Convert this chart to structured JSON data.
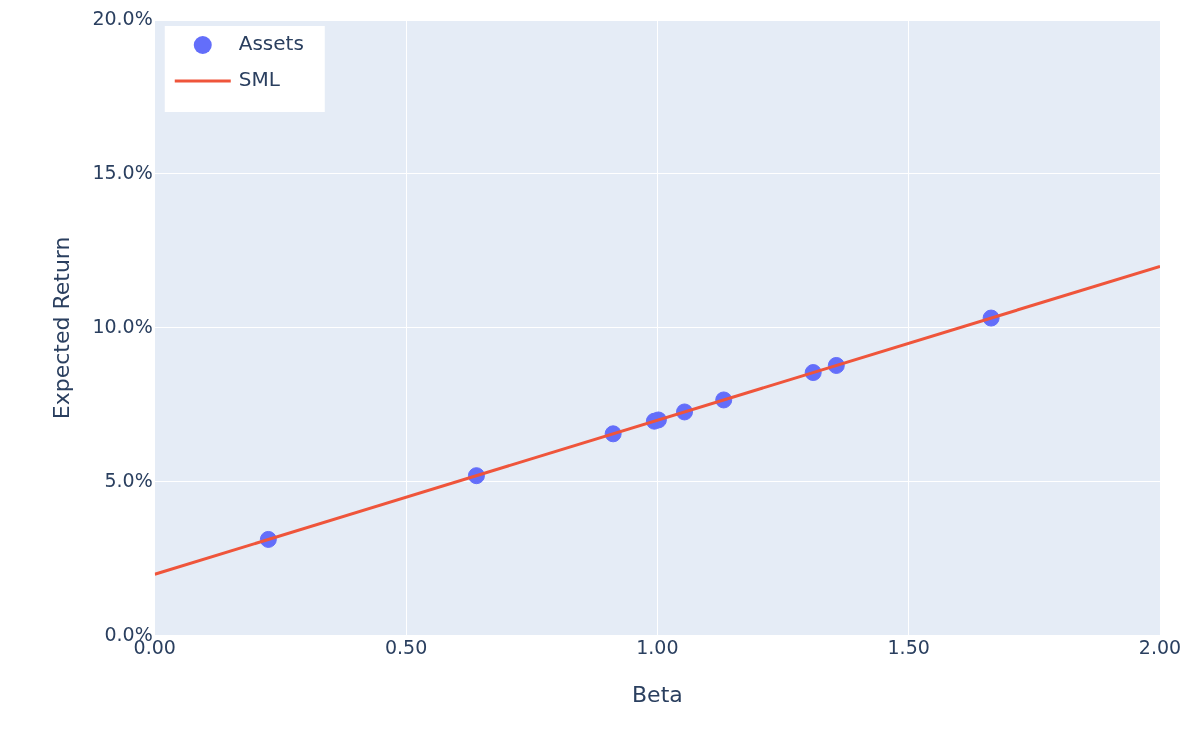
{
  "chart_data": {
    "type": "scatter",
    "xlabel": "Beta",
    "ylabel": "Expected Return",
    "xlim": [
      0,
      2
    ],
    "xticks": [
      {
        "value": 0,
        "label": "0.00"
      },
      {
        "value": 0.5,
        "label": "0.50"
      },
      {
        "value": 1,
        "label": "1.00"
      },
      {
        "value": 1.5,
        "label": "1.50"
      },
      {
        "value": 2,
        "label": "2.00"
      }
    ],
    "ylim": [
      0,
      20
    ],
    "yticks": [
      {
        "value": 0,
        "label": "0.0%"
      },
      {
        "value": 5,
        "label": "5.0%"
      },
      {
        "value": 10,
        "label": "10.0%"
      },
      {
        "value": 15,
        "label": "15.0%"
      },
      {
        "value": 20,
        "label": "20.0%"
      }
    ],
    "grid": true,
    "legend": "top left",
    "series": [
      {
        "name": "Assets",
        "marker": "circle",
        "color": "#636efa",
        "x": [
          0.226,
          0.64,
          0.912,
          0.994,
          1.002,
          1.054,
          1.132,
          1.31,
          1.356,
          1.664
        ],
        "values": [
          3.13,
          5.2,
          6.56,
          6.97,
          7.01,
          7.27,
          7.66,
          8.55,
          8.78,
          10.32
        ]
      },
      {
        "name": "SML",
        "type": "line",
        "marker": "none",
        "color": "#ef553b",
        "line_style": "solid",
        "x": [
          0,
          2
        ],
        "values": [
          2,
          12
        ]
      }
    ]
  }
}
